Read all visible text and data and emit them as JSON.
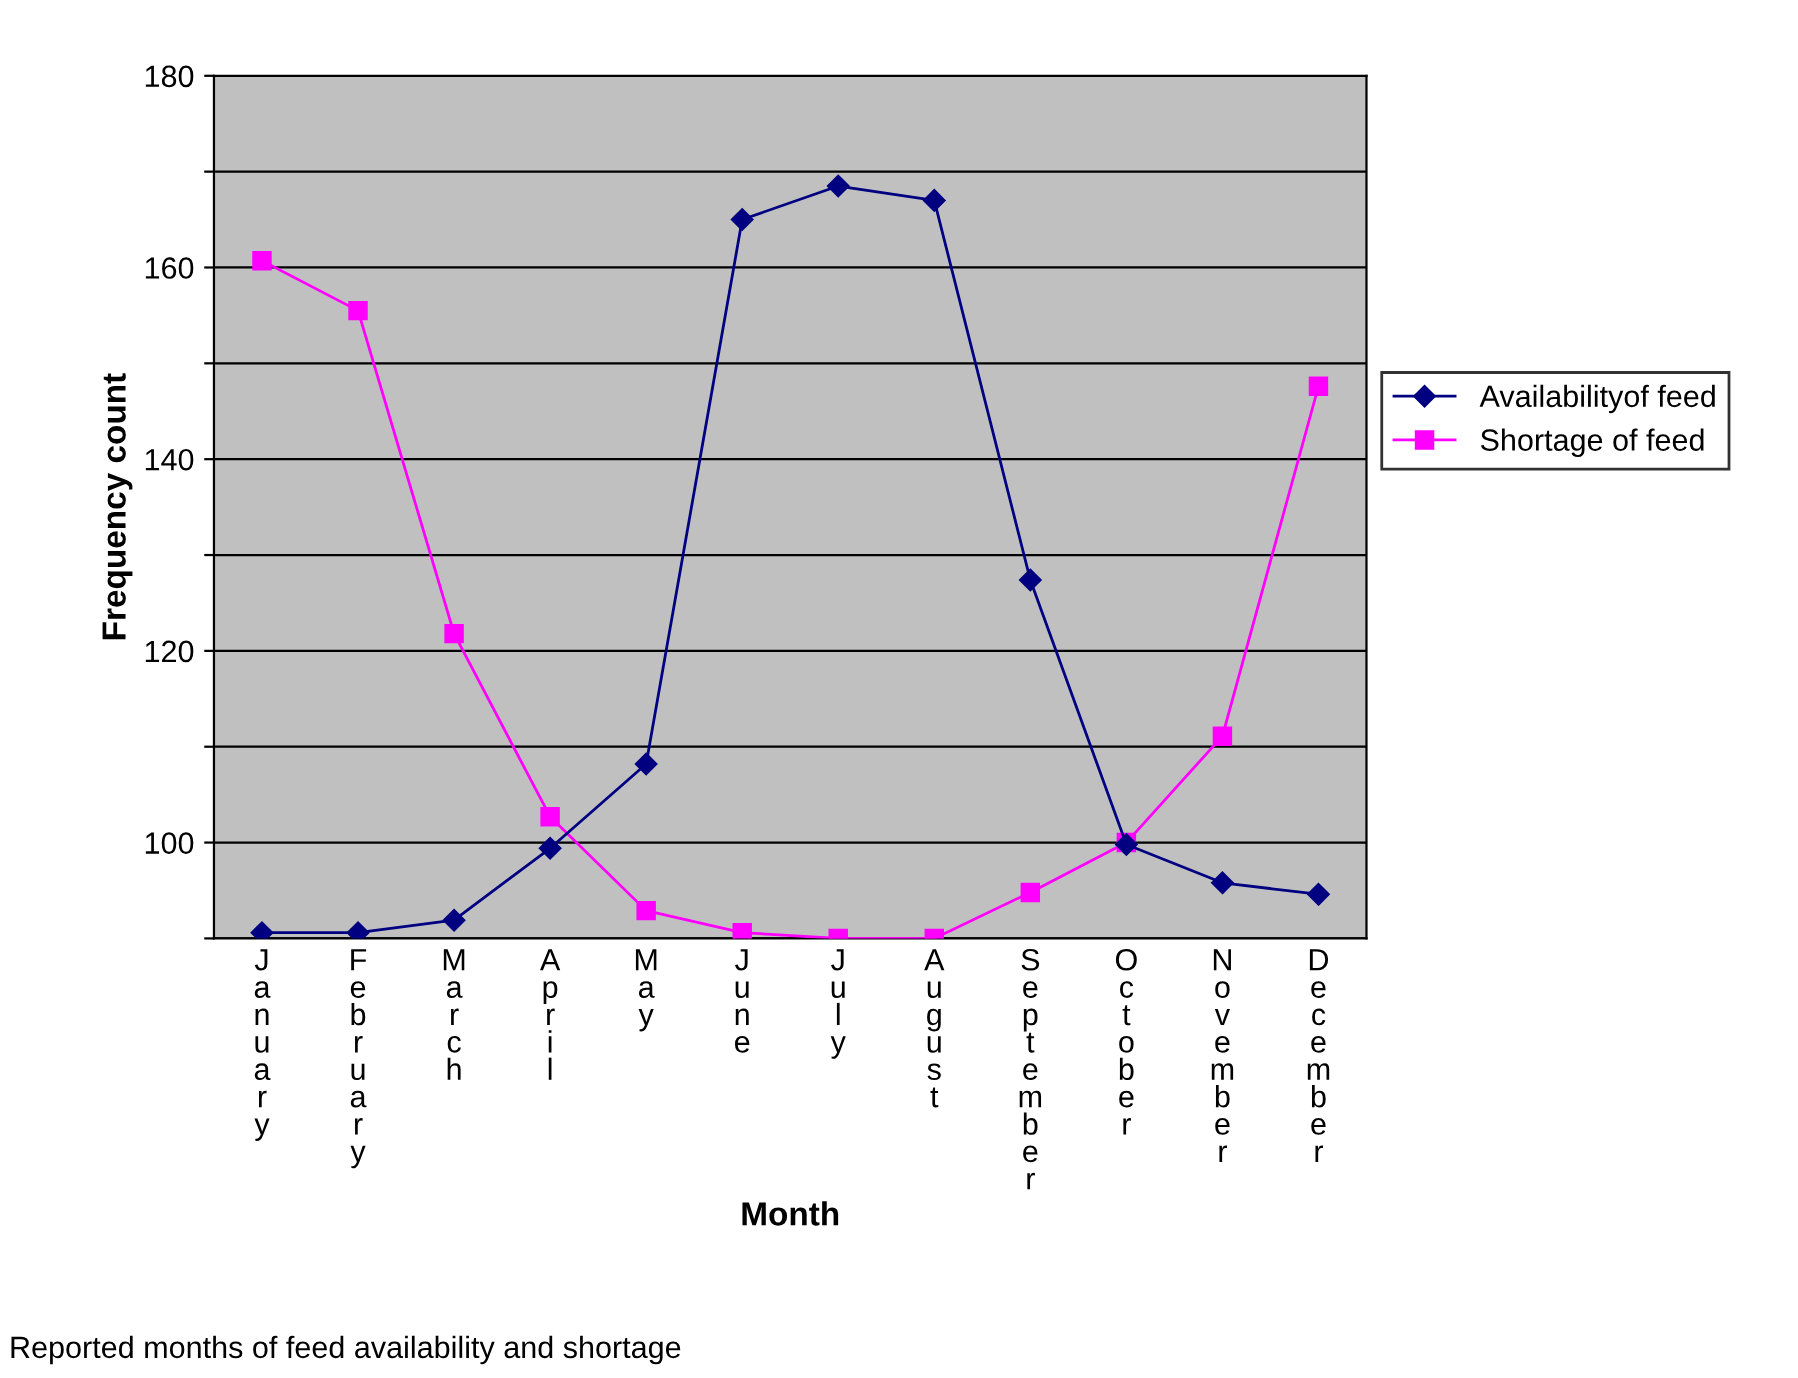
{
  "chart_data": {
    "type": "line",
    "xlabel": "Month",
    "ylabel": "Frequency count",
    "categories": [
      "January",
      "February",
      "March",
      "April",
      "May",
      "June",
      "July",
      "August",
      "September",
      "October",
      "November",
      "December"
    ],
    "series": [
      {
        "name": "Availabilityof feed",
        "color": "#000080",
        "marker": "diamond",
        "values": [
          90.6,
          90.6,
          91.9,
          99.4,
          108.2,
          165,
          168.5,
          167,
          127.4,
          99.8,
          95.8,
          94.6
        ]
      },
      {
        "name": "Shortage of feed",
        "color": "#ff00ff",
        "marker": "square",
        "values": [
          160.7,
          155.5,
          121.8,
          102.7,
          92.9,
          90.6,
          90,
          90,
          94.8,
          100,
          111.1,
          147.6
        ]
      }
    ],
    "ylim": [
      90,
      180
    ],
    "yticks": [
      {
        "value": 90,
        "label": null
      },
      100,
      {
        "value": 110,
        "label": null
      },
      120,
      {
        "value": 130,
        "label": null
      },
      140,
      {
        "value": 150,
        "label": null
      },
      160,
      {
        "value": 170,
        "label": null
      },
      180
    ],
    "grid": "y",
    "legend": "right",
    "annotations": [
      "Reported months of feed availability and shortage"
    ]
  }
}
